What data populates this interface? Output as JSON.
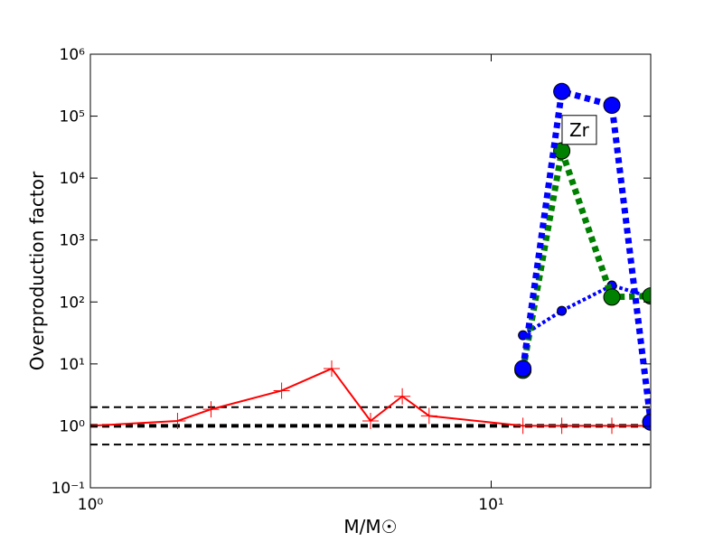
{
  "chart_data": {
    "type": "line",
    "xlabel": "M/M☉",
    "ylabel": "Overproduction factor",
    "annotation": {
      "text": "Zr",
      "x": 16.5,
      "y": 60000
    },
    "xscale": "log",
    "yscale": "log",
    "xlim": [
      1,
      25
    ],
    "ylim": [
      0.1,
      1000000
    ],
    "xticks": [
      {
        "value": 1,
        "label": "10⁰"
      },
      {
        "value": 10,
        "label": "10¹"
      }
    ],
    "yticks": [
      {
        "value": 0.1,
        "label": "10⁻¹"
      },
      {
        "value": 1,
        "label": "10⁰"
      },
      {
        "value": 10,
        "label": "10¹"
      },
      {
        "value": 100,
        "label": "10²"
      },
      {
        "value": 1000,
        "label": "10³"
      },
      {
        "value": 10000,
        "label": "10⁴"
      },
      {
        "value": 100000,
        "label": "10⁵"
      },
      {
        "value": 1000000,
        "label": "10⁶"
      }
    ],
    "hlines": [
      {
        "y": 2,
        "color": "#000000",
        "width": 2
      },
      {
        "y": 1,
        "color": "#000000",
        "width": 4
      },
      {
        "y": 0.5,
        "color": "#000000",
        "width": 2
      }
    ],
    "series": [
      {
        "color": "#ff0000",
        "linestyle": "solid",
        "linewidth": 2,
        "marker": "plus",
        "markersize": 9,
        "x": [
          1,
          1.65,
          2,
          3,
          4,
          5,
          6,
          7,
          12,
          15,
          20,
          25
        ],
        "values": [
          1.0,
          1.2,
          1.85,
          3.7,
          8.4,
          1.2,
          3.0,
          1.45,
          1.0,
          1.0,
          1.0,
          1.0
        ]
      },
      {
        "color": "#0000ff",
        "linestyle": "dotted",
        "linewidth": 4,
        "marker": "circle",
        "markersize": 5,
        "x": [
          12,
          15,
          20,
          25
        ],
        "values": [
          29,
          72,
          185,
          120
        ]
      },
      {
        "color": "#008000",
        "linestyle": "dotted",
        "linewidth": 7,
        "marker": "circle",
        "markersize": 9,
        "x": [
          12,
          15,
          20,
          25
        ],
        "values": [
          7.9,
          27500,
          120,
          125
        ]
      },
      {
        "color": "#0000ff",
        "linestyle": "dotted",
        "linewidth": 7,
        "marker": "circle",
        "markersize": 9,
        "x": [
          12,
          15,
          20,
          25
        ],
        "values": [
          8.4,
          250000,
          150000,
          1.15
        ]
      }
    ]
  }
}
